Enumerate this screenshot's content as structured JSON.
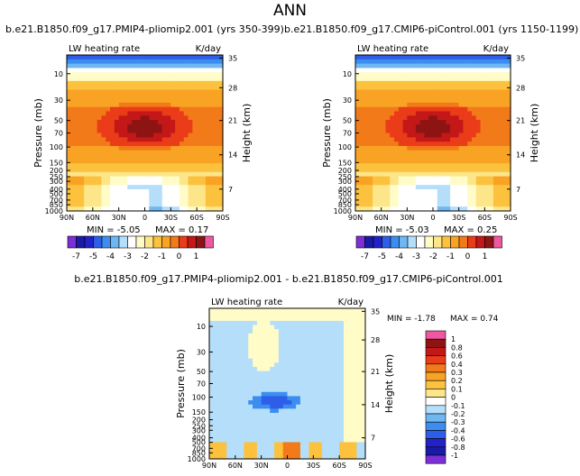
{
  "title": "ANN",
  "colors": {
    "levels": [
      "#7b2fd6",
      "#1a1aa8",
      "#2222c8",
      "#2e5ee8",
      "#3b8ef0",
      "#6fb7f2",
      "#b4defa",
      "#ffffff",
      "#fffcc8",
      "#fde68a",
      "#fcc23e",
      "#f9a325",
      "#f27a18",
      "#ea3c18",
      "#c41818",
      "#8e1414",
      "#ef57a0"
    ],
    "diff": [
      "#7b2fd6",
      "#1a1aa8",
      "#2222c8",
      "#2e5ee8",
      "#3b8ef0",
      "#6fb7f2",
      "#b4defa",
      "#ffffff",
      "#fffcc8",
      "#fde68a",
      "#fcc23e",
      "#f9a325",
      "#f27a18",
      "#ea3c18",
      "#c41818",
      "#8e1414",
      "#ef57a0"
    ]
  },
  "chart_data": [
    {
      "type": "heatmap",
      "title": "b.e21.B1850.f09_g17.PMIP4-pliomip2.001 (yrs 350-399)",
      "left_label": "LW heating rate",
      "right_label": "K/day",
      "ylabel": "Pressure (mb)",
      "y2label": "Height (km)",
      "x_ticks": [
        "90N",
        "60N",
        "30N",
        "0",
        "30S",
        "60S",
        "90S"
      ],
      "y_ticks": [
        "10",
        "30",
        "50",
        "70",
        "100",
        "150",
        "200",
        "250",
        "300",
        "400",
        "500",
        "700",
        "850",
        "1000"
      ],
      "y2_ticks": [
        "35",
        "28",
        "21",
        "14",
        "7"
      ],
      "min_label": "MIN = -5.05",
      "max_label": "MAX = 0.17",
      "colorbar_labels": [
        "-7",
        "-5",
        "-4",
        "-3",
        "-2",
        "-1",
        "0",
        "1"
      ]
    },
    {
      "type": "heatmap",
      "title": "b.e21.B1850.f09_g17.CMIP6-piControl.001 (yrs 1150-1199)",
      "left_label": "LW heating rate",
      "right_label": "K/day",
      "ylabel": "Pressure (mb)",
      "y2label": "Height (km)",
      "x_ticks": [
        "90N",
        "60N",
        "30N",
        "0",
        "30S",
        "60S",
        "90S"
      ],
      "y_ticks": [
        "10",
        "30",
        "50",
        "70",
        "100",
        "150",
        "200",
        "250",
        "300",
        "400",
        "500",
        "700",
        "850",
        "1000"
      ],
      "y2_ticks": [
        "35",
        "28",
        "21",
        "14",
        "7"
      ],
      "min_label": "MIN = -5.03",
      "max_label": "MAX = 0.25",
      "colorbar_labels": [
        "-7",
        "-5",
        "-4",
        "-3",
        "-2",
        "-1",
        "0",
        "1"
      ]
    },
    {
      "type": "heatmap",
      "title": "b.e21.B1850.f09_g17.PMIP4-pliomip2.001 - b.e21.B1850.f09_g17.CMIP6-piControl.001",
      "left_label": "LW heating rate",
      "right_label": "K/day",
      "ylabel": "Pressure (mb)",
      "y2label": "Height (km)",
      "x_ticks": [
        "90N",
        "60N",
        "30N",
        "0",
        "30S",
        "60S",
        "90S"
      ],
      "y_ticks": [
        "10",
        "30",
        "50",
        "70",
        "100",
        "150",
        "200",
        "250",
        "300",
        "400",
        "500",
        "700",
        "850",
        "1000"
      ],
      "y2_ticks": [
        "35",
        "28",
        "21",
        "14",
        "7"
      ],
      "min_label": "MIN = -1.78",
      "max_label": "MAX = 0.74",
      "colorbar_labels": [
        "1",
        "0.8",
        "0.6",
        "0.4",
        "0.3",
        "0.2",
        "0.1",
        "0",
        "-0.1",
        "-0.2",
        "-0.3",
        "-0.4",
        "-0.6",
        "-0.8",
        "-1"
      ]
    }
  ]
}
